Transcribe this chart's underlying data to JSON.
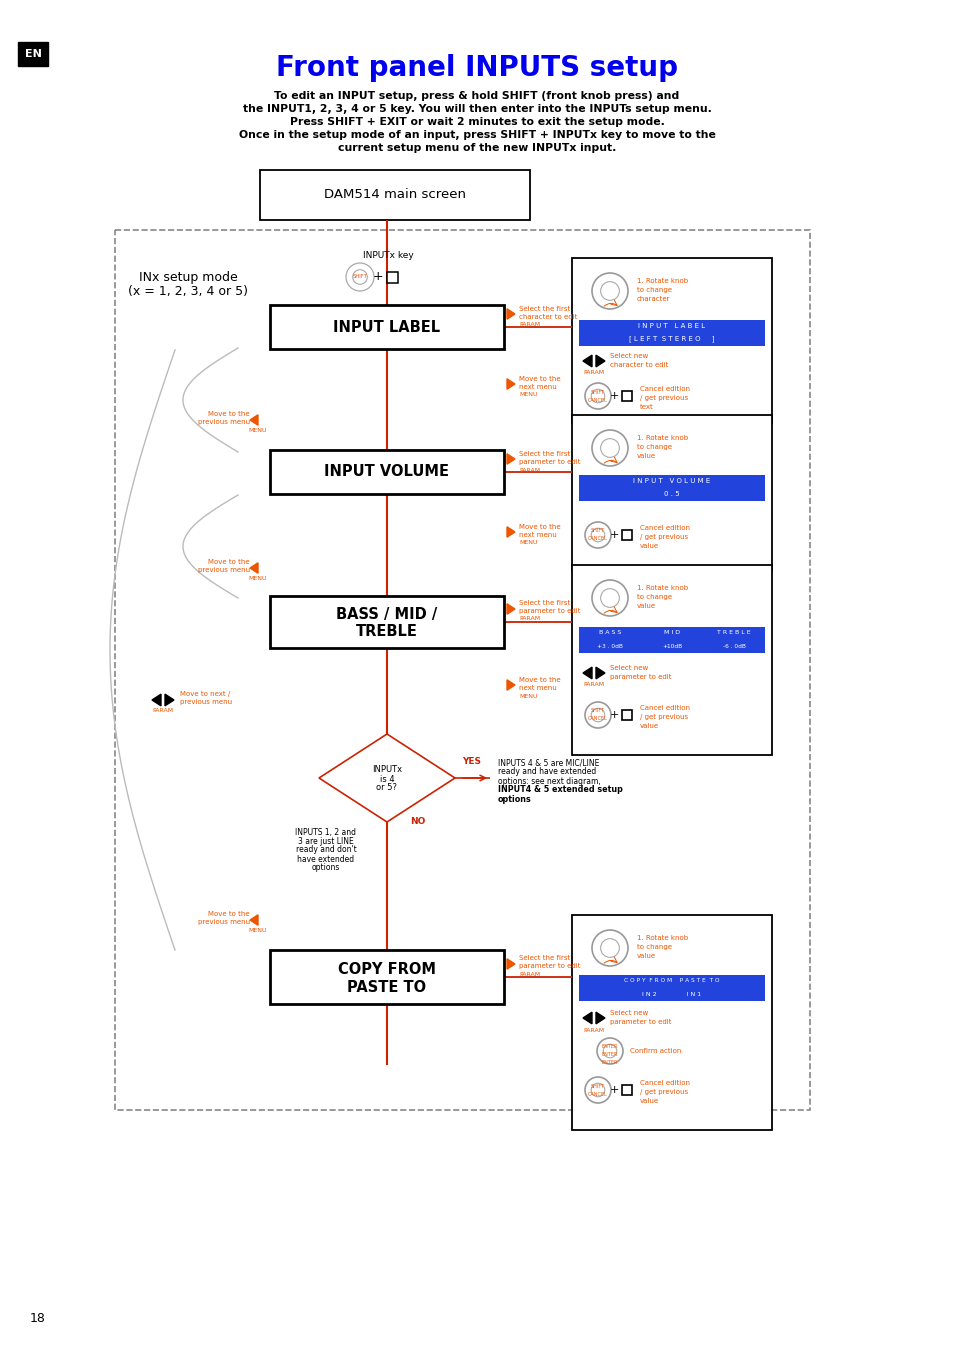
{
  "title": "Front panel INPUTS setup",
  "title_color": "#0000EE",
  "title_fontsize": 20,
  "subtitle_lines": [
    "To edit an INPUT setup, press & hold SHIFT (front knob press) and",
    "the INPUT1, 2, 3, 4 or 5 key. You will then enter into the INPUTs setup menu.",
    "Press SHIFT + EXIT or wait 2 minutes to exit the setup mode.",
    "Once in the setup mode of an input, press SHIFT + INPUTx key to move to the",
    "current setup menu of the new INPUTx input."
  ],
  "bg_color": "#FFFFFF",
  "en_label": "EN",
  "page_number": "18",
  "flow_line_color": "#CC2200",
  "orange_color": "#EE5500",
  "blue_bar_color": "#2244DD",
  "screen_label": "DAM514 main screen"
}
